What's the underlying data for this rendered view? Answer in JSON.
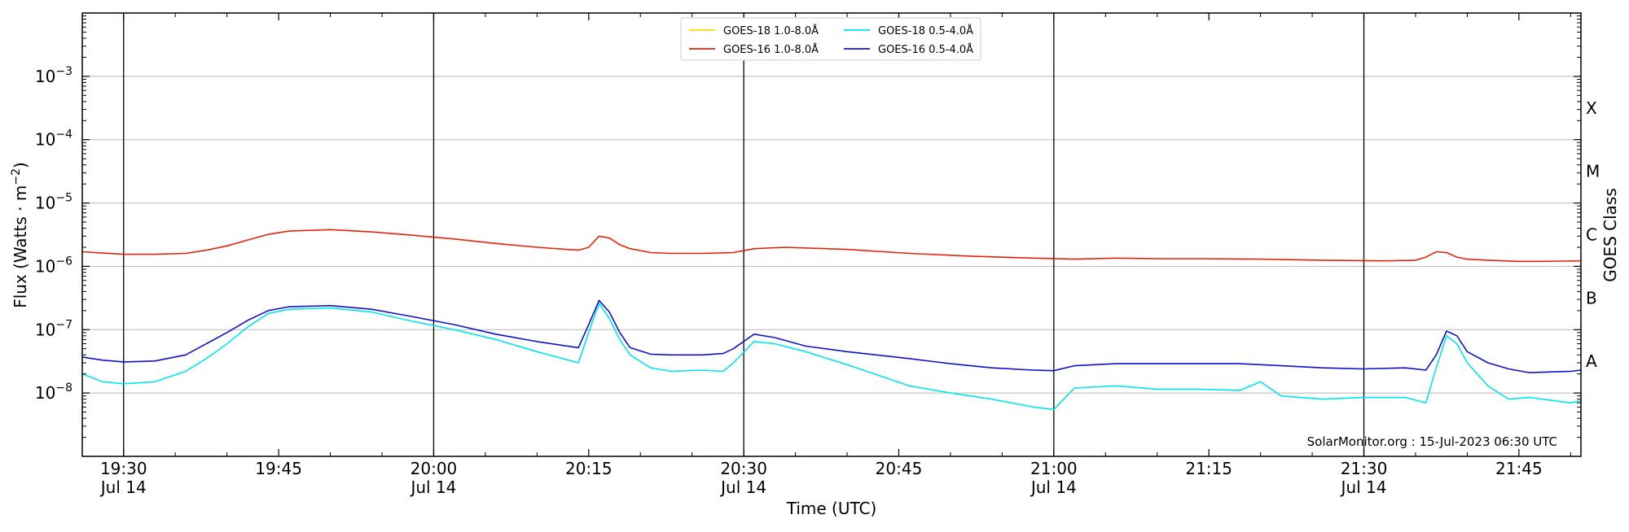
{
  "chart_data": {
    "type": "line",
    "xlabel": "Time (UTC)",
    "ylabel_main": "Flux (Watts · m",
    "ylabel_sup": "−2",
    "ylabel_close": ")",
    "ylabel_right": "GOES Class",
    "y_scale": "log",
    "ylim": [
      1e-09,
      0.01
    ],
    "xlim": [
      "2023-07-14 19:26",
      "2023-07-14 21:51"
    ],
    "grid": "horizontal gridlines at each decade",
    "legend_placement": "top-center",
    "x_ticks": [
      {
        "time": "19:30",
        "date": "Jul 14"
      },
      {
        "time": "19:45",
        "date": ""
      },
      {
        "time": "20:00",
        "date": "Jul 14"
      },
      {
        "time": "20:15",
        "date": ""
      },
      {
        "time": "20:30",
        "date": "Jul 14"
      },
      {
        "time": "20:45",
        "date": ""
      },
      {
        "time": "21:00",
        "date": "Jul 14"
      },
      {
        "time": "21:15",
        "date": ""
      },
      {
        "time": "21:30",
        "date": "Jul 14"
      },
      {
        "time": "21:45",
        "date": ""
      }
    ],
    "vertical_lines": [
      "19:30",
      "20:00",
      "20:30",
      "21:00",
      "21:30"
    ],
    "y_ticks": [
      {
        "value": 1e-08,
        "base": "10",
        "exp": "−8"
      },
      {
        "value": 1e-07,
        "base": "10",
        "exp": "−7"
      },
      {
        "value": 1e-06,
        "base": "10",
        "exp": "−6"
      },
      {
        "value": 1e-05,
        "base": "10",
        "exp": "−5"
      },
      {
        "value": 0.0001,
        "base": "10",
        "exp": "−4"
      },
      {
        "value": 0.001,
        "base": "10",
        "exp": "−3"
      }
    ],
    "class_labels": [
      {
        "label": "A",
        "value": 1e-08
      },
      {
        "label": "B",
        "value": 1e-07
      },
      {
        "label": "C",
        "value": 1e-06
      },
      {
        "label": "M",
        "value": 1e-05
      },
      {
        "label": "X",
        "value": 0.0001
      }
    ],
    "series": [
      {
        "name": "GOES-18 1.0-8.0Å",
        "color": "#ffd700",
        "x": [],
        "values": []
      },
      {
        "name": "GOES-16 1.0-8.0Å",
        "color": "#e8220a",
        "x": [
          "19:26",
          "19:30",
          "19:33",
          "19:36",
          "19:38",
          "19:40",
          "19:42",
          "19:44",
          "19:46",
          "19:50",
          "19:54",
          "19:58",
          "20:02",
          "20:06",
          "20:10",
          "20:14",
          "20:15",
          "20:16",
          "20:17",
          "20:18",
          "20:19",
          "20:21",
          "20:23",
          "20:26",
          "20:29",
          "20:31",
          "20:34",
          "20:40",
          "20:46",
          "20:52",
          "20:58",
          "21:02",
          "21:06",
          "21:10",
          "21:14",
          "21:20",
          "21:26",
          "21:32",
          "21:35",
          "21:36",
          "21:37",
          "21:38",
          "21:39",
          "21:40",
          "21:42",
          "21:45",
          "21:47",
          "21:51"
        ],
        "values": [
          1.7e-06,
          1.55e-06,
          1.55e-06,
          1.6e-06,
          1.8e-06,
          2.1e-06,
          2.6e-06,
          3.2e-06,
          3.6e-06,
          3.8e-06,
          3.5e-06,
          3.1e-06,
          2.7e-06,
          2.3e-06,
          2e-06,
          1.8e-06,
          2e-06,
          3e-06,
          2.8e-06,
          2.2e-06,
          1.9e-06,
          1.65e-06,
          1.6e-06,
          1.6e-06,
          1.65e-06,
          1.9e-06,
          2e-06,
          1.85e-06,
          1.6e-06,
          1.45e-06,
          1.35e-06,
          1.3e-06,
          1.35e-06,
          1.32e-06,
          1.32e-06,
          1.3e-06,
          1.25e-06,
          1.22e-06,
          1.25e-06,
          1.4e-06,
          1.7e-06,
          1.65e-06,
          1.4e-06,
          1.3e-06,
          1.25e-06,
          1.2e-06,
          1.2e-06,
          1.22e-06
        ]
      },
      {
        "name": "GOES-18 0.5-4.0Å",
        "color": "#00e5ee",
        "x": [
          "19:26",
          "19:28",
          "19:30",
          "19:33",
          "19:36",
          "19:38",
          "19:40",
          "19:42",
          "19:44",
          "19:46",
          "19:50",
          "19:54",
          "19:58",
          "20:02",
          "20:06",
          "20:10",
          "20:14",
          "20:15",
          "20:16",
          "20:17",
          "20:18",
          "20:19",
          "20:21",
          "20:23",
          "20:26",
          "20:28",
          "20:29",
          "20:31",
          "20:33",
          "20:36",
          "20:40",
          "20:46",
          "20:50",
          "20:54",
          "20:58",
          "21:00",
          "21:02",
          "21:06",
          "21:10",
          "21:14",
          "21:18",
          "21:20",
          "21:22",
          "21:26",
          "21:30",
          "21:34",
          "21:36",
          "21:37",
          "21:38",
          "21:39",
          "21:40",
          "21:42",
          "21:44",
          "21:46",
          "21:50",
          "21:51"
        ],
        "values": [
          2e-08,
          1.5e-08,
          1.4e-08,
          1.5e-08,
          2.2e-08,
          3.5e-08,
          6e-08,
          1.1e-07,
          1.8e-07,
          2.1e-07,
          2.2e-07,
          1.9e-07,
          1.35e-07,
          1e-07,
          7e-08,
          4.5e-08,
          3e-08,
          9e-08,
          2.6e-07,
          1.5e-07,
          7e-08,
          4e-08,
          2.5e-08,
          2.2e-08,
          2.3e-08,
          2.2e-08,
          3e-08,
          6.5e-08,
          6e-08,
          4.5e-08,
          2.8e-08,
          1.3e-08,
          1e-08,
          8e-09,
          6e-09,
          5.5e-09,
          1.2e-08,
          1.3e-08,
          1.15e-08,
          1.15e-08,
          1.1e-08,
          1.5e-08,
          9e-09,
          8e-09,
          8.5e-09,
          8.5e-09,
          7e-09,
          2.5e-08,
          8e-08,
          6e-08,
          3e-08,
          1.3e-08,
          8e-09,
          8.5e-09,
          7e-09,
          7.5e-09
        ]
      },
      {
        "name": "GOES-16 0.5-4.0Å",
        "color": "#1010d0",
        "x": [
          "19:26",
          "19:28",
          "19:30",
          "19:33",
          "19:36",
          "19:38",
          "19:40",
          "19:42",
          "19:44",
          "19:46",
          "19:50",
          "19:54",
          "19:58",
          "20:02",
          "20:06",
          "20:10",
          "20:14",
          "20:15",
          "20:16",
          "20:17",
          "20:18",
          "20:19",
          "20:21",
          "20:23",
          "20:26",
          "20:28",
          "20:29",
          "20:31",
          "20:33",
          "20:36",
          "20:40",
          "20:46",
          "20:50",
          "20:54",
          "20:58",
          "21:00",
          "21:02",
          "21:06",
          "21:10",
          "21:14",
          "21:18",
          "21:20",
          "21:22",
          "21:26",
          "21:30",
          "21:34",
          "21:36",
          "21:37",
          "21:38",
          "21:39",
          "21:40",
          "21:42",
          "21:44",
          "21:46",
          "21:50",
          "21:51"
        ],
        "values": [
          3.7e-08,
          3.3e-08,
          3.1e-08,
          3.2e-08,
          4e-08,
          6e-08,
          9e-08,
          1.4e-07,
          2e-07,
          2.3e-07,
          2.4e-07,
          2.1e-07,
          1.6e-07,
          1.2e-07,
          8.5e-08,
          6.5e-08,
          5.2e-08,
          1.2e-07,
          2.9e-07,
          1.9e-07,
          9e-08,
          5.2e-08,
          4.1e-08,
          4e-08,
          4e-08,
          4.2e-08,
          5e-08,
          8.5e-08,
          7.5e-08,
          5.5e-08,
          4.5e-08,
          3.5e-08,
          2.9e-08,
          2.5e-08,
          2.3e-08,
          2.25e-08,
          2.7e-08,
          2.9e-08,
          2.9e-08,
          2.9e-08,
          2.9e-08,
          2.8e-08,
          2.7e-08,
          2.5e-08,
          2.4e-08,
          2.5e-08,
          2.3e-08,
          4e-08,
          9.5e-08,
          8e-08,
          4.5e-08,
          3e-08,
          2.4e-08,
          2.1e-08,
          2.2e-08,
          2.3e-08
        ]
      }
    ],
    "annotation": "SolarMonitor.org : 15-Jul-2023 06:30 UTC"
  }
}
